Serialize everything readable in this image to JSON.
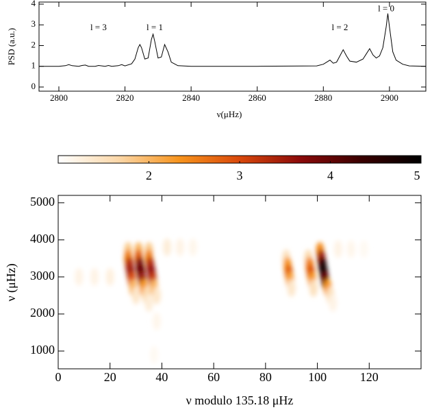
{
  "chart_data": [
    {
      "type": "line",
      "xlabel": "ν(μHz)",
      "ylabel": "PSD (a.u.)",
      "color": "#000000",
      "xlim": [
        2794,
        2911
      ],
      "xticks": [
        2800,
        2820,
        2840,
        2860,
        2880,
        2900
      ],
      "ylim": [
        -0.2,
        4.1
      ],
      "yticks": [
        0,
        1,
        2,
        3,
        4
      ],
      "x": [
        2794,
        2800,
        2802,
        2803,
        2804,
        2806,
        2807,
        2808,
        2809,
        2811,
        2812,
        2814,
        2815,
        2816,
        2818,
        2819,
        2820,
        2822,
        2823,
        2824,
        2824.5,
        2825,
        2826,
        2827,
        2828,
        2828.5,
        2829,
        2830,
        2831,
        2832,
        2833,
        2834,
        2836,
        2840,
        2860,
        2878,
        2880,
        2881,
        2882,
        2883,
        2884,
        2885,
        2886,
        2887,
        2888,
        2890,
        2892,
        2893,
        2894,
        2895,
        2896,
        2897,
        2898,
        2899,
        2899.5,
        2900,
        2901,
        2902,
        2904,
        2906,
        2911
      ],
      "values": [
        1,
        1,
        1.03,
        1.08,
        1.03,
        1,
        1.04,
        1.06,
        1,
        1,
        1.04,
        1,
        1.04,
        1,
        1.03,
        1.08,
        1.02,
        1.12,
        1.35,
        1.9,
        2.05,
        1.9,
        1.35,
        1.4,
        2.3,
        2.55,
        2.2,
        1.4,
        1.45,
        2.05,
        1.7,
        1.2,
        1.03,
        1,
        1,
        1.02,
        1.1,
        1.2,
        1.3,
        1.15,
        1.2,
        1.5,
        1.8,
        1.5,
        1.25,
        1.2,
        1.35,
        1.6,
        1.85,
        1.55,
        1.4,
        1.5,
        1.9,
        2.9,
        3.55,
        2.9,
        1.7,
        1.3,
        1.1,
        1.02,
        1
      ],
      "annotations": [
        {
          "text": "l = 3",
          "x": 2812,
          "y": 2.85
        },
        {
          "text": "l = 1",
          "x": 2829,
          "y": 2.85
        },
        {
          "text": "l = 2",
          "x": 2885,
          "y": 2.85
        },
        {
          "text": "l = 0",
          "x": 2899,
          "y": 3.75
        }
      ]
    },
    {
      "type": "heatmap",
      "xlabel": "ν modulo 135.18 μHz",
      "ylabel": "ν (μHz)",
      "xlim": [
        0,
        140
      ],
      "xticks": [
        0,
        20,
        40,
        60,
        80,
        100,
        120
      ],
      "ylim": [
        520,
        5200
      ],
      "yticks": [
        1000,
        2000,
        3000,
        4000,
        5000
      ],
      "zlim": [
        1,
        5
      ],
      "zticks": [
        2,
        3,
        4,
        5
      ],
      "colorscale": [
        "#ffffff",
        "#fbd7a8",
        "#f7941d",
        "#d9480b",
        "#8b0a0a",
        "#3a0000",
        "#000000"
      ],
      "x": [
        27,
        27,
        27.5,
        28,
        28.5,
        29,
        30,
        31,
        31,
        31.5,
        32,
        32.5,
        33,
        34,
        35,
        35,
        35,
        35.5,
        36,
        36.5,
        37,
        38,
        88,
        88.5,
        89,
        89.5,
        90,
        96.5,
        97,
        97.5,
        98,
        98.5,
        101,
        101.5,
        102,
        102.5,
        103,
        104,
        105,
        106,
        42,
        47,
        52,
        108,
        113,
        118,
        8,
        14,
        20,
        38,
        37
      ],
      "y": [
        3700,
        3500,
        3300,
        3100,
        2900,
        2700,
        2500,
        3700,
        3500,
        3300,
        3100,
        2900,
        2700,
        2500,
        2300,
        3700,
        3500,
        3300,
        3100,
        2900,
        2700,
        2500,
        3500,
        3300,
        3100,
        2900,
        2700,
        3500,
        3300,
        3100,
        2900,
        2700,
        3700,
        3500,
        3300,
        3100,
        2900,
        2700,
        2500,
        2300,
        3800,
        3800,
        3800,
        3750,
        3750,
        3750,
        3000,
        3000,
        3000,
        1800,
        900
      ],
      "values": [
        1.8,
        2.5,
        3.3,
        3.5,
        3.0,
        2.0,
        1.4,
        2.0,
        2.8,
        3.8,
        4.0,
        3.5,
        2.3,
        1.6,
        1.3,
        1.8,
        2.5,
        3.3,
        3.6,
        3.2,
        2.0,
        1.4,
        1.5,
        2.3,
        2.8,
        2.2,
        1.4,
        1.6,
        2.5,
        2.9,
        2.3,
        1.5,
        2.4,
        3.5,
        4.6,
        4.8,
        4.0,
        2.3,
        1.5,
        1.2,
        1.3,
        1.2,
        1.15,
        1.2,
        1.15,
        1.1,
        1.2,
        1.2,
        1.25,
        1.15,
        1.1
      ]
    }
  ]
}
